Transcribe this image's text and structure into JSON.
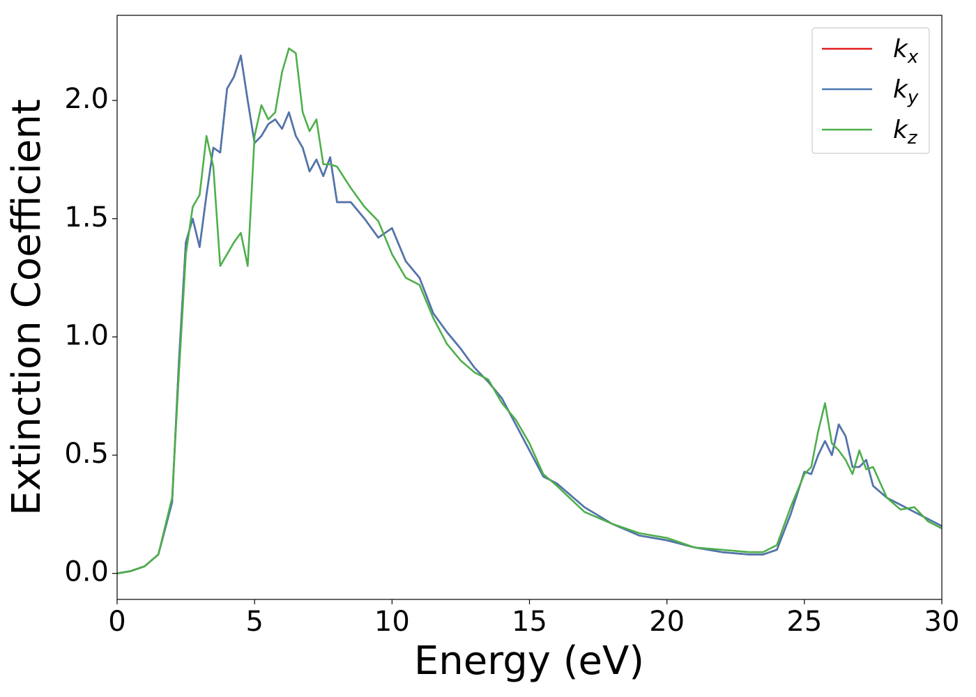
{
  "chart_data": {
    "type": "line",
    "xlabel": "Energy (eV)",
    "ylabel": "Extinction Coefficient",
    "x": [
      0,
      0.5,
      1,
      1.5,
      2,
      2.25,
      2.5,
      2.75,
      3,
      3.25,
      3.5,
      3.75,
      4,
      4.25,
      4.5,
      4.75,
      5,
      5.25,
      5.5,
      5.75,
      6,
      6.25,
      6.5,
      6.75,
      7,
      7.25,
      7.5,
      7.75,
      8,
      8.5,
      9,
      9.5,
      10,
      10.5,
      11,
      11.5,
      12,
      12.5,
      13,
      13.5,
      14,
      14.5,
      15,
      15.5,
      16,
      17,
      18,
      19,
      20,
      21,
      22,
      23,
      23.5,
      24,
      24.5,
      25,
      25.25,
      25.5,
      25.75,
      26,
      26.25,
      26.5,
      26.75,
      27,
      27.25,
      27.5,
      28,
      28.5,
      29,
      29.5,
      30
    ],
    "series": [
      {
        "name": "kx",
        "color": "#e41a1c",
        "values": [
          0,
          0.01,
          0.03,
          0.08,
          0.3,
          0.9,
          1.4,
          1.5,
          1.38,
          1.6,
          1.8,
          1.78,
          2.05,
          2.1,
          2.19,
          2.0,
          1.82,
          1.85,
          1.9,
          1.92,
          1.88,
          1.95,
          1.85,
          1.8,
          1.7,
          1.75,
          1.68,
          1.76,
          1.57,
          1.57,
          1.5,
          1.42,
          1.46,
          1.32,
          1.25,
          1.1,
          1.02,
          0.95,
          0.87,
          0.81,
          0.74,
          0.63,
          0.52,
          0.41,
          0.38,
          0.28,
          0.21,
          0.16,
          0.14,
          0.11,
          0.09,
          0.08,
          0.08,
          0.1,
          0.25,
          0.43,
          0.42,
          0.5,
          0.56,
          0.5,
          0.63,
          0.58,
          0.45,
          0.45,
          0.48,
          0.37,
          0.32,
          0.29,
          0.26,
          0.23,
          0.2
        ]
      },
      {
        "name": "ky",
        "color": "#4a77b0",
        "values": [
          0,
          0.01,
          0.03,
          0.08,
          0.3,
          0.9,
          1.4,
          1.5,
          1.38,
          1.6,
          1.8,
          1.78,
          2.05,
          2.1,
          2.19,
          2.0,
          1.82,
          1.85,
          1.9,
          1.92,
          1.88,
          1.95,
          1.85,
          1.8,
          1.7,
          1.75,
          1.68,
          1.76,
          1.57,
          1.57,
          1.5,
          1.42,
          1.46,
          1.32,
          1.25,
          1.1,
          1.02,
          0.95,
          0.87,
          0.81,
          0.74,
          0.63,
          0.52,
          0.41,
          0.38,
          0.28,
          0.21,
          0.16,
          0.14,
          0.11,
          0.09,
          0.08,
          0.08,
          0.1,
          0.25,
          0.43,
          0.42,
          0.5,
          0.56,
          0.5,
          0.63,
          0.58,
          0.45,
          0.45,
          0.48,
          0.37,
          0.32,
          0.29,
          0.26,
          0.23,
          0.2
        ]
      },
      {
        "name": "kz",
        "color": "#4daf4a",
        "values": [
          0,
          0.01,
          0.03,
          0.08,
          0.32,
          0.85,
          1.35,
          1.55,
          1.6,
          1.85,
          1.72,
          1.3,
          1.35,
          1.4,
          1.44,
          1.3,
          1.85,
          1.98,
          1.92,
          1.95,
          2.12,
          2.22,
          2.2,
          1.95,
          1.87,
          1.92,
          1.73,
          1.73,
          1.72,
          1.63,
          1.55,
          1.49,
          1.35,
          1.25,
          1.22,
          1.08,
          0.97,
          0.9,
          0.85,
          0.82,
          0.72,
          0.65,
          0.55,
          0.42,
          0.37,
          0.26,
          0.21,
          0.17,
          0.15,
          0.11,
          0.1,
          0.09,
          0.09,
          0.12,
          0.28,
          0.42,
          0.45,
          0.6,
          0.72,
          0.55,
          0.52,
          0.48,
          0.42,
          0.52,
          0.44,
          0.45,
          0.32,
          0.27,
          0.28,
          0.22,
          0.19
        ]
      }
    ],
    "xlim": [
      0,
      30
    ],
    "xticks": [
      0,
      5,
      10,
      15,
      20,
      25,
      30
    ],
    "ylim": [
      -0.11,
      2.36
    ],
    "yticks": [
      {
        "value": 0,
        "label": "0.0"
      },
      {
        "value": 0.5,
        "label": "0.5"
      },
      {
        "value": 1,
        "label": "1.0"
      },
      {
        "value": 1.5,
        "label": "1.5"
      },
      {
        "value": 2,
        "label": "2.0"
      }
    ],
    "legend": "upper right"
  }
}
